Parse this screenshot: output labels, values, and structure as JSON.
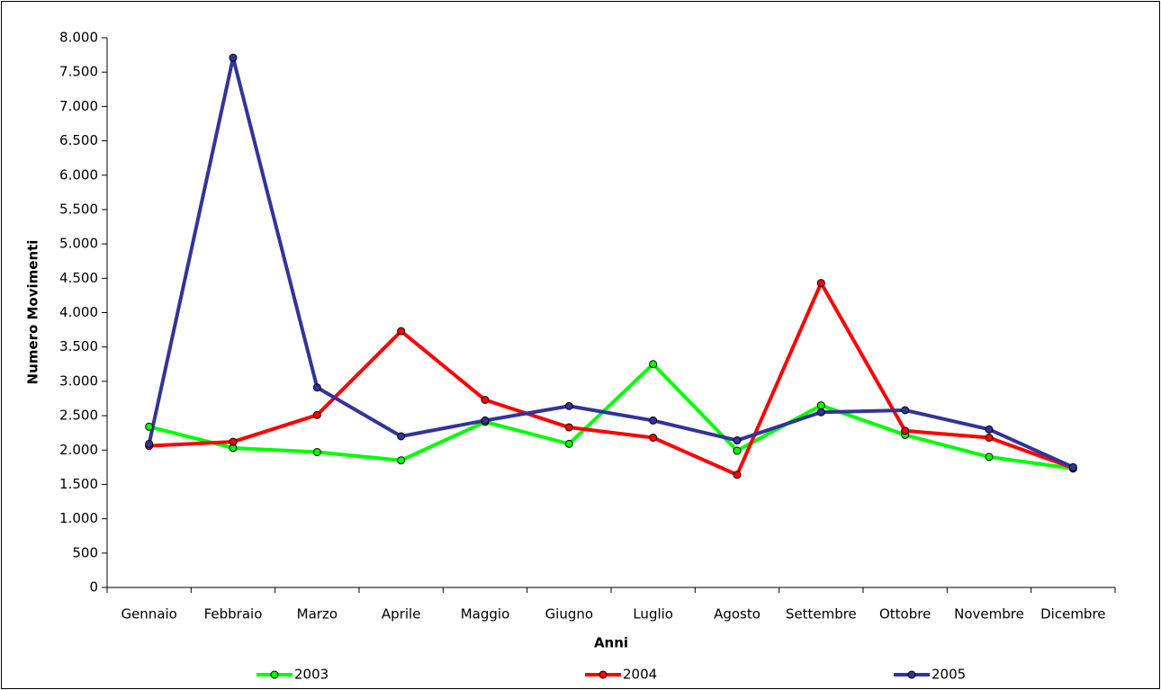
{
  "chart_data": {
    "type": "line",
    "x_label": "Anni",
    "y_label": "Numero Movimenti",
    "categories": [
      "Gennaio",
      "Febbraio",
      "Marzo",
      "Aprile",
      "Maggio",
      "Giugno",
      "Luglio",
      "Agosto",
      "Settembre",
      "Ottobre",
      "Novembre",
      "Dicembre"
    ],
    "series": [
      {
        "name": "2003",
        "color": "#00ff00",
        "values": [
          2340,
          2030,
          1970,
          1850,
          2410,
          2090,
          3250,
          1990,
          2650,
          2220,
          1900,
          1730
        ]
      },
      {
        "name": "2004",
        "color": "#ff0000",
        "values": [
          2060,
          2120,
          2510,
          3730,
          2730,
          2330,
          2180,
          1640,
          4430,
          2280,
          2180,
          1740
        ]
      },
      {
        "name": "2005",
        "color": "#333399",
        "values": [
          2090,
          7710,
          2910,
          2200,
          2430,
          2640,
          2430,
          2140,
          2550,
          2580,
          2300,
          1750
        ]
      }
    ],
    "ylim": [
      0,
      8000
    ],
    "yticks": [
      0,
      500,
      {
        "value": 1000,
        "label": "1.000"
      },
      {
        "value": 1500,
        "label": "1.500"
      },
      {
        "value": 2000,
        "label": "2.000"
      },
      {
        "value": 2500,
        "label": "2.500"
      },
      {
        "value": 3000,
        "label": "3.000"
      },
      {
        "value": 3500,
        "label": "3.500"
      },
      {
        "value": 4000,
        "label": "4.000"
      },
      {
        "value": 4500,
        "label": "4.500"
      },
      {
        "value": 5000,
        "label": "5.000"
      },
      {
        "value": 5500,
        "label": "5.500"
      },
      {
        "value": 6000,
        "label": "6.000"
      },
      {
        "value": 6500,
        "label": "6.500"
      },
      {
        "value": 7000,
        "label": "7.000"
      },
      {
        "value": 7500,
        "label": "7.500"
      },
      {
        "value": 8000,
        "label": "8.000"
      }
    ],
    "grid": false,
    "legend": "bottom"
  }
}
